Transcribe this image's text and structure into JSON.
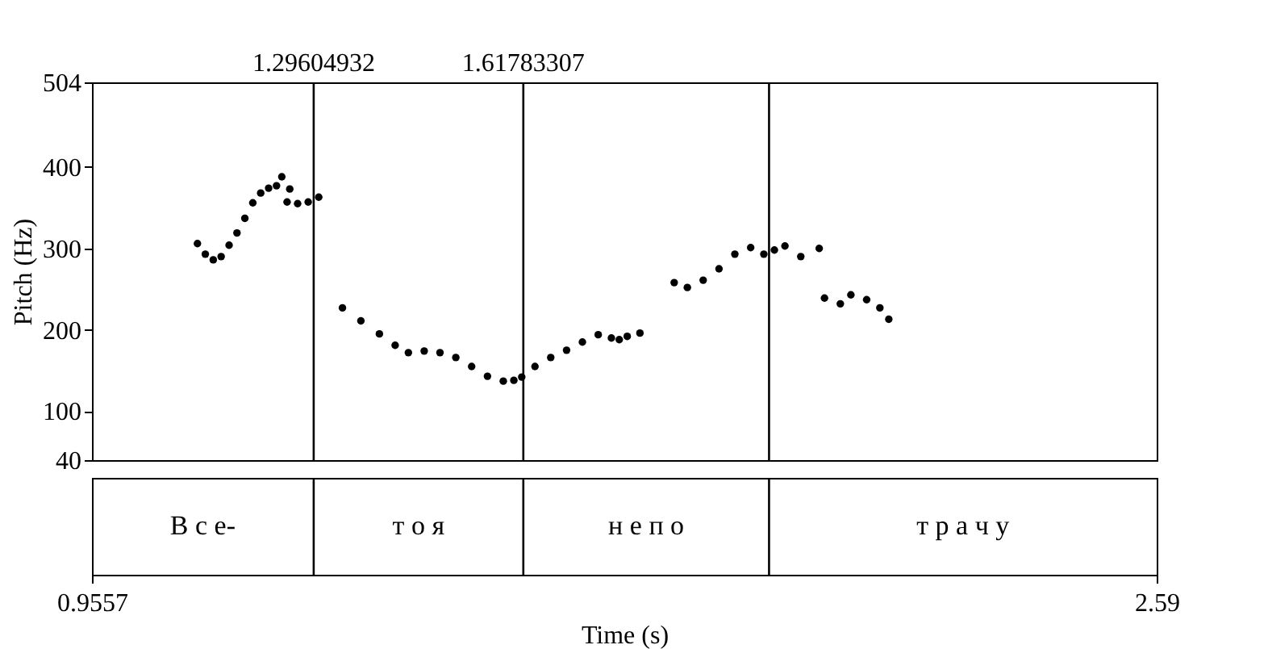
{
  "chart_data": {
    "type": "scatter",
    "xlabel": "Time (s)",
    "ylabel": "Pitch (Hz)",
    "xlim": [
      0.9557,
      2.59
    ],
    "xticks": [
      0.9557,
      2.59
    ],
    "ylim": [
      40,
      504
    ],
    "yticks": [
      40,
      100,
      200,
      300,
      400,
      504
    ],
    "marker": "circle",
    "grid": false,
    "x": [
      1.1176,
      1.1297,
      1.1419,
      1.154,
      1.1662,
      1.1783,
      1.1904,
      1.2026,
      1.2147,
      1.2269,
      1.239,
      1.2471,
      1.2552,
      1.2593,
      1.2714,
      1.2876,
      1.3038,
      1.3402,
      1.3685,
      1.3969,
      1.4211,
      1.4414,
      1.4657,
      1.4899,
      1.5142,
      1.5385,
      1.5628,
      1.5871,
      1.6033,
      1.6154,
      1.6357,
      1.6599,
      1.6842,
      1.7085,
      1.7328,
      1.753,
      1.7651,
      1.7773,
      1.7968,
      1.8494,
      1.8696,
      1.8939,
      1.9182,
      1.9425,
      1.9668,
      1.987,
      2.0032,
      2.0194,
      2.0437,
      2.072,
      2.0801,
      2.1044,
      2.1206,
      2.1448,
      2.1651,
      2.1788
    ],
    "series": [
      {
        "color": "#000000",
        "values": [
          306,
          293,
          286,
          290,
          304,
          319,
          337,
          356,
          368,
          374,
          377,
          388,
          357,
          373,
          355,
          357,
          363,
          227,
          211,
          195,
          181,
          172,
          174,
          172,
          166,
          155,
          143,
          137,
          138,
          142,
          155,
          166,
          175,
          185,
          194,
          190,
          188,
          192,
          196,
          258,
          252,
          261,
          275,
          293,
          301,
          293,
          298,
          303,
          290,
          300,
          239,
          232,
          243,
          237,
          227,
          213
        ]
      }
    ],
    "ref_lines": [
      {
        "axis": "x",
        "value": 1.29604932,
        "label": "1.29604932",
        "color": "#000000"
      },
      {
        "axis": "x",
        "value": 1.61783307,
        "label": "1.61783307",
        "color": "#000000"
      },
      {
        "axis": "x",
        "value": 1.995,
        "label": null,
        "color": "#000000"
      }
    ],
    "annotations": [
      "В с е-",
      "т о   я",
      "н е   п о",
      "т р а   ч у"
    ]
  }
}
